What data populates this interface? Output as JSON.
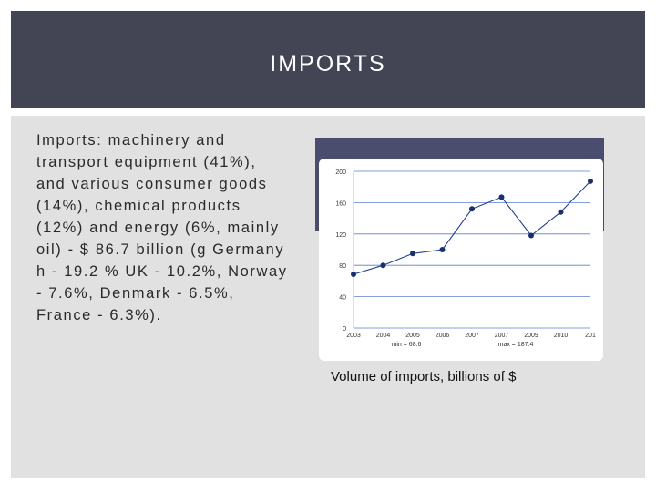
{
  "slide": {
    "title": "IMPORTS",
    "body": "Imports: machinery and transport equipment (41%), and various consumer goods (14%), chemical products (12%) and energy (6%, mainly oil) - $ 86.7 billion (g Germany h - 19.2 % UK - 10.2%, Norway - 7.6%, Denmark - 6.5%, France - 6.3%).",
    "caption": "Volume of imports, billions of $"
  },
  "chart_data": {
    "type": "line",
    "x": [
      "2003",
      "2004",
      "2005",
      "2006",
      "2007",
      "2007",
      "2009",
      "2010",
      "201"
    ],
    "values": [
      68.6,
      80,
      95,
      100,
      152,
      167,
      118,
      148,
      187.4
    ],
    "y_ticks": [
      "0",
      "40",
      "80",
      "120",
      "160",
      "200"
    ],
    "ylim": [
      0,
      200
    ],
    "grid": true,
    "annotations": [
      "min = 68.6",
      "max = 187.4"
    ],
    "colors": {
      "line": "#1f3f8f",
      "marker": "#1a2f6b",
      "grid": "#5a7fd1"
    }
  }
}
